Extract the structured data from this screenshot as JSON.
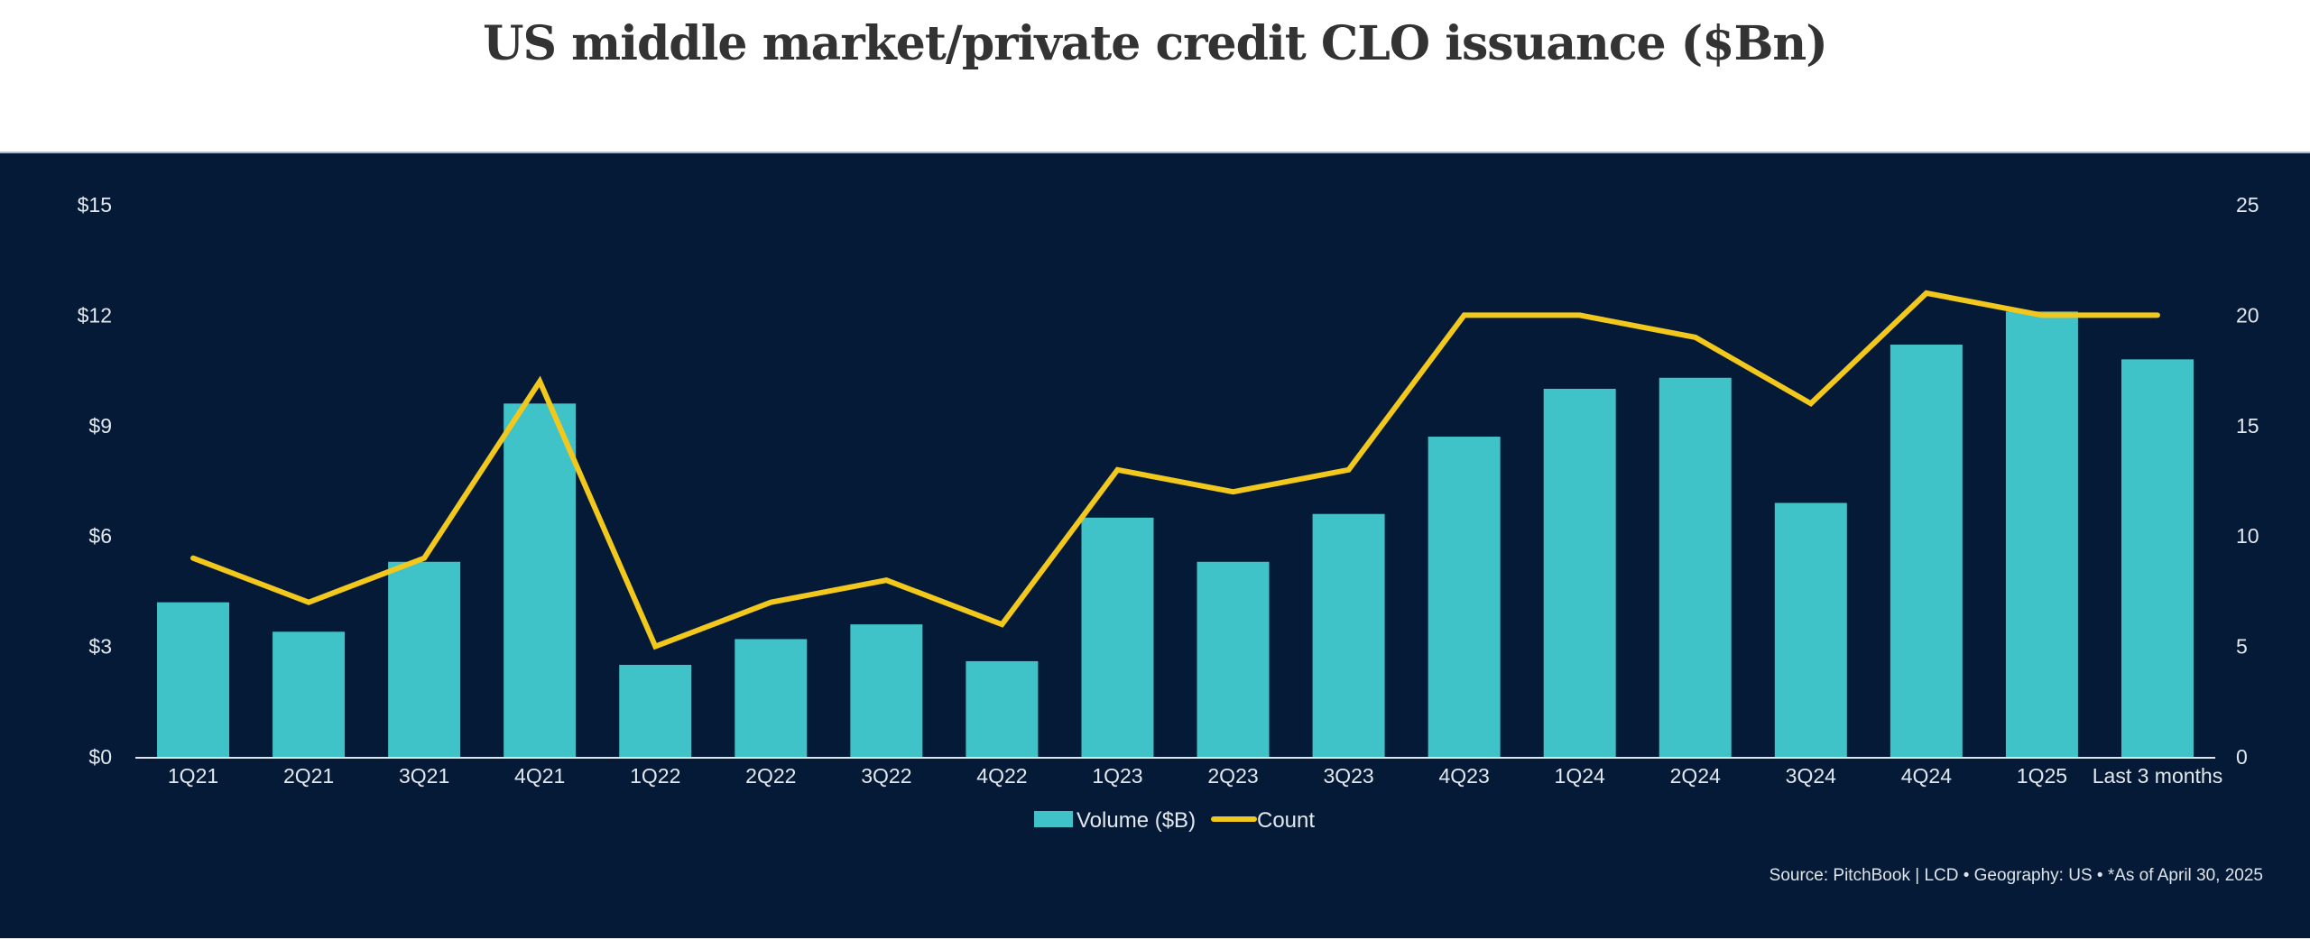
{
  "chart_data": {
    "type": "bar",
    "title": "US middle market/private credit CLO issuance ($Bn)",
    "categories": [
      "1Q21",
      "2Q21",
      "3Q21",
      "4Q21",
      "1Q22",
      "2Q22",
      "3Q22",
      "4Q22",
      "1Q23",
      "2Q23",
      "3Q23",
      "4Q23",
      "1Q24",
      "2Q24",
      "3Q24",
      "4Q24",
      "1Q25",
      "Last 3 months"
    ],
    "series": [
      {
        "name": "Volume ($B)",
        "type": "bar",
        "axis": "left",
        "color": "#40c2c9",
        "values": [
          4.2,
          3.4,
          5.3,
          9.6,
          2.5,
          3.2,
          3.6,
          2.6,
          6.5,
          5.3,
          6.6,
          8.7,
          10.0,
          10.3,
          6.9,
          11.2,
          12.1,
          10.8
        ]
      },
      {
        "name": "Count",
        "type": "line",
        "axis": "right",
        "color": "#f2c81c",
        "values": [
          9,
          7,
          9,
          17,
          5,
          7,
          8,
          6,
          13,
          12,
          13,
          20,
          20,
          19,
          16,
          21,
          20,
          20
        ]
      }
    ],
    "y_left": {
      "ylim": [
        0,
        15
      ],
      "ticks": [
        0,
        3,
        6,
        9,
        12,
        15
      ],
      "tick_labels": [
        "$0",
        "$3",
        "$6",
        "$9",
        "$12",
        "$15"
      ]
    },
    "y_right": {
      "ylim": [
        0,
        25
      ],
      "ticks": [
        0,
        5,
        10,
        15,
        20,
        25
      ],
      "tick_labels": [
        "0",
        "5",
        "10",
        "15",
        "20",
        "25"
      ]
    },
    "xlabel": "",
    "ylabel": "",
    "grid": false,
    "legend": {
      "placement": "bottom-center",
      "entries": [
        "Volume ($B)",
        "Count"
      ]
    },
    "source_note": "Source: PitchBook | LCD  •  Geography: US  •  *As of April 30, 2025"
  },
  "colors": {
    "background": "#041a36",
    "bar": "#40c2c9",
    "line": "#f2c81c",
    "text": "#e3e8ee",
    "title": "#333333"
  }
}
